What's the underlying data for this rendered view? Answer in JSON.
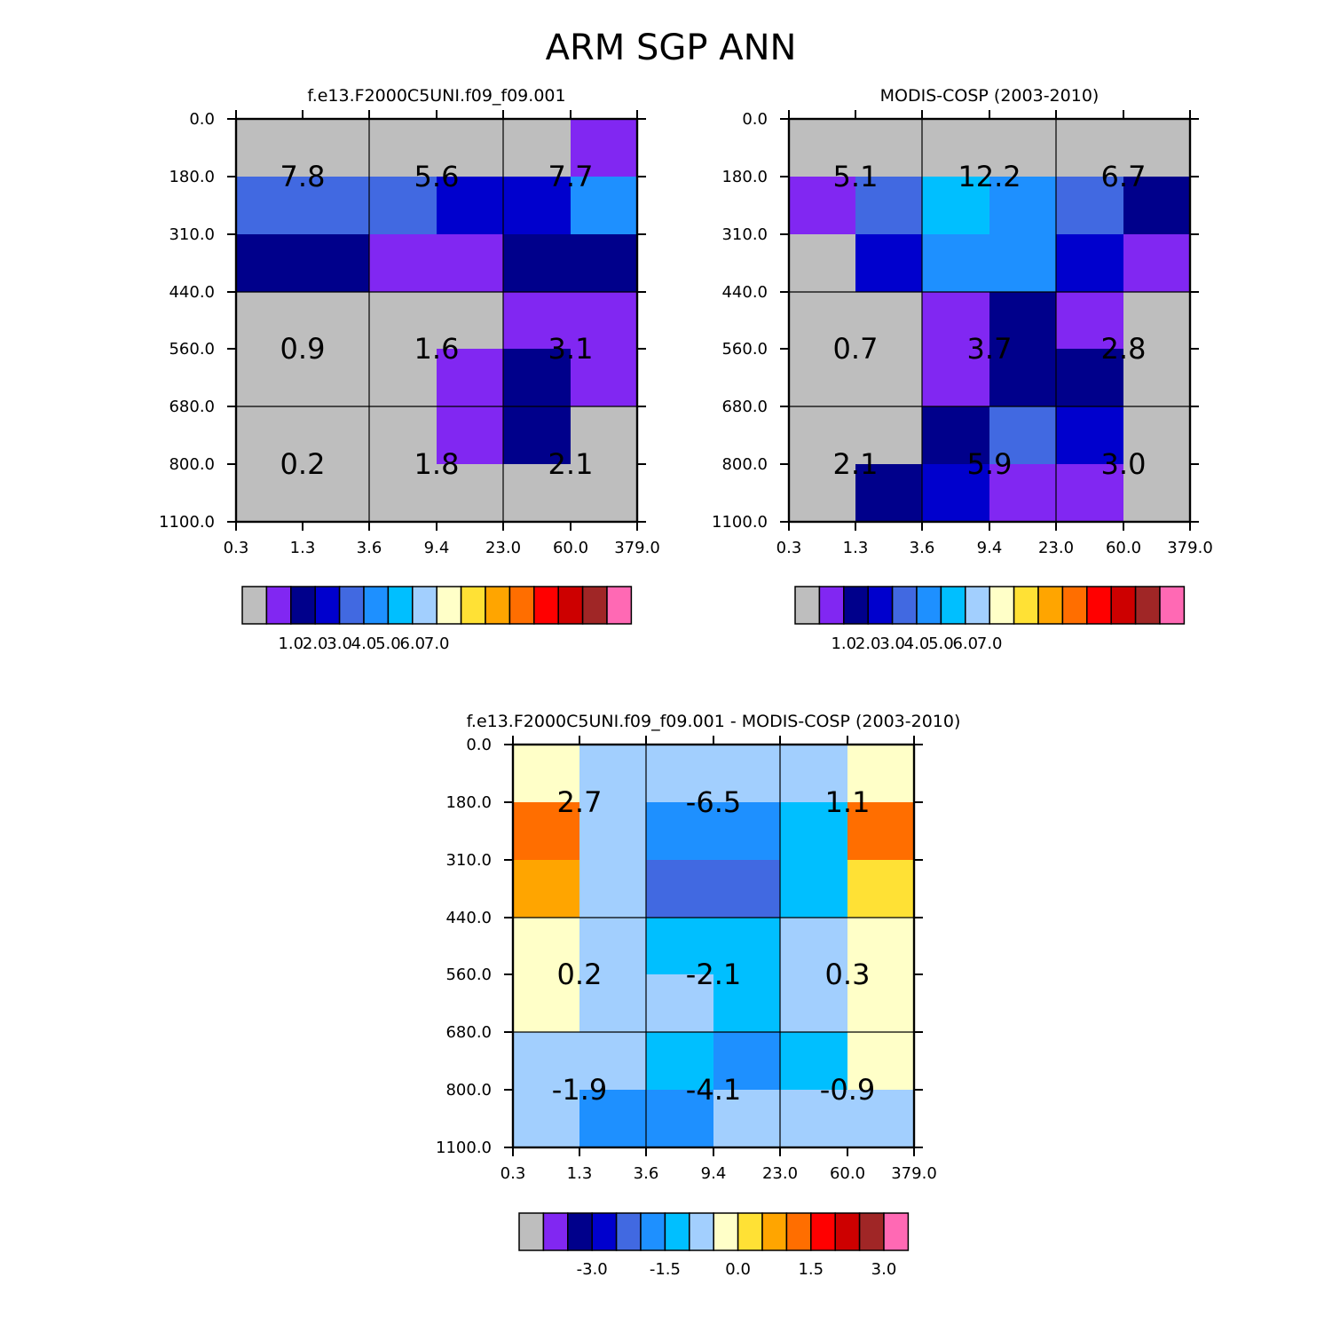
{
  "figure": {
    "title": "ARM SGP ANN"
  },
  "x_ticks": [
    "0.3",
    "1.3",
    "3.6",
    "9.4",
    "23.0",
    "60.0",
    "379.0"
  ],
  "y_ticks": [
    "0.0",
    "180.0",
    "310.0",
    "440.0",
    "560.0",
    "680.0",
    "800.0",
    "1100.0"
  ],
  "palettes": {
    "abs": [
      "#bebebe",
      "#8127f2",
      "#00008b",
      "#0000cd",
      "#4169e1",
      "#1e90ff",
      "#00bfff",
      "#a2cffe",
      "#ffffc8",
      "#ffe135",
      "#ffa500",
      "#ff6e00",
      "#ff0000",
      "#cd0000",
      "#a02626",
      "#ff69b4"
    ],
    "diff": [
      "#bebebe",
      "#8127f2",
      "#00008b",
      "#0000cd",
      "#4169e1",
      "#1e90ff",
      "#00bfff",
      "#a2cffe",
      "#ffffc8",
      "#ffe135",
      "#ffa500",
      "#ff6e00",
      "#ff0000",
      "#cd0000",
      "#a02626",
      "#ff69b4"
    ]
  },
  "chart_data": [
    {
      "type": "heatmap",
      "title": "f.e13.F2000C5UNI.f09_f09.001",
      "x_bins": [
        "0.3",
        "1.3",
        "3.6",
        "9.4",
        "23.0",
        "60.0",
        "379.0"
      ],
      "y_bins": [
        "0.0",
        "180.0",
        "310.0",
        "440.0",
        "560.0",
        "680.0",
        "800.0",
        "1100.0"
      ],
      "grid_color_index": [
        [
          0,
          0,
          0,
          0,
          0,
          1
        ],
        [
          4,
          4,
          4,
          3,
          3,
          5
        ],
        [
          2,
          2,
          1,
          1,
          2,
          2
        ],
        [
          0,
          0,
          0,
          0,
          1,
          1
        ],
        [
          0,
          0,
          0,
          1,
          2,
          1
        ],
        [
          0,
          0,
          0,
          1,
          2,
          0
        ],
        [
          0,
          0,
          0,
          0,
          0,
          0
        ]
      ],
      "group_labels": [
        [
          "7.8",
          "5.6",
          "7.7"
        ],
        [
          "0.9",
          "1.6",
          "3.1"
        ],
        [
          "0.2",
          "1.8",
          "2.1"
        ]
      ],
      "colorbar_labels": [
        "1.0",
        "2.0",
        "3.0",
        "4.0",
        "5.0",
        "6.0",
        "7.0"
      ],
      "palette": "abs"
    },
    {
      "type": "heatmap",
      "title": "MODIS-COSP (2003-2010)",
      "x_bins": [
        "0.3",
        "1.3",
        "3.6",
        "9.4",
        "23.0",
        "60.0",
        "379.0"
      ],
      "y_bins": [
        "0.0",
        "180.0",
        "310.0",
        "440.0",
        "560.0",
        "680.0",
        "800.0",
        "1100.0"
      ],
      "grid_color_index": [
        [
          0,
          0,
          0,
          0,
          0,
          0
        ],
        [
          1,
          4,
          6,
          5,
          4,
          2
        ],
        [
          0,
          3,
          5,
          5,
          3,
          1
        ],
        [
          0,
          0,
          1,
          2,
          1,
          0
        ],
        [
          0,
          0,
          1,
          2,
          2,
          0
        ],
        [
          0,
          0,
          2,
          4,
          3,
          0
        ],
        [
          0,
          2,
          3,
          1,
          1,
          0
        ]
      ],
      "group_labels": [
        [
          "5.1",
          "12.2",
          "6.7"
        ],
        [
          "0.7",
          "3.7",
          "2.8"
        ],
        [
          "2.1",
          "5.9",
          "3.0"
        ]
      ],
      "colorbar_labels": [
        "1.0",
        "2.0",
        "3.0",
        "4.0",
        "5.0",
        "6.0",
        "7.0"
      ],
      "palette": "abs"
    },
    {
      "type": "heatmap",
      "title": "f.e13.F2000C5UNI.f09_f09.001 - MODIS-COSP (2003-2010)",
      "x_bins": [
        "0.3",
        "1.3",
        "3.6",
        "9.4",
        "23.0",
        "60.0",
        "379.0"
      ],
      "y_bins": [
        "0.0",
        "180.0",
        "310.0",
        "440.0",
        "560.0",
        "680.0",
        "800.0",
        "1100.0"
      ],
      "grid_color_index": [
        [
          8,
          7,
          7,
          7,
          7,
          8
        ],
        [
          11,
          7,
          5,
          5,
          6,
          11
        ],
        [
          10,
          7,
          4,
          4,
          6,
          9
        ],
        [
          8,
          7,
          6,
          6,
          7,
          8
        ],
        [
          8,
          7,
          7,
          6,
          7,
          8
        ],
        [
          7,
          7,
          6,
          5,
          6,
          8
        ],
        [
          7,
          5,
          5,
          7,
          7,
          7
        ]
      ],
      "group_labels": [
        [
          "2.7",
          "-6.5",
          "1.1"
        ],
        [
          "0.2",
          "-2.1",
          "0.3"
        ],
        [
          "-1.9",
          "-4.1",
          "-0.9"
        ]
      ],
      "colorbar_labels": [
        "-3.0",
        "-1.5",
        "0.0",
        "1.5",
        "3.0"
      ],
      "palette": "diff"
    }
  ]
}
